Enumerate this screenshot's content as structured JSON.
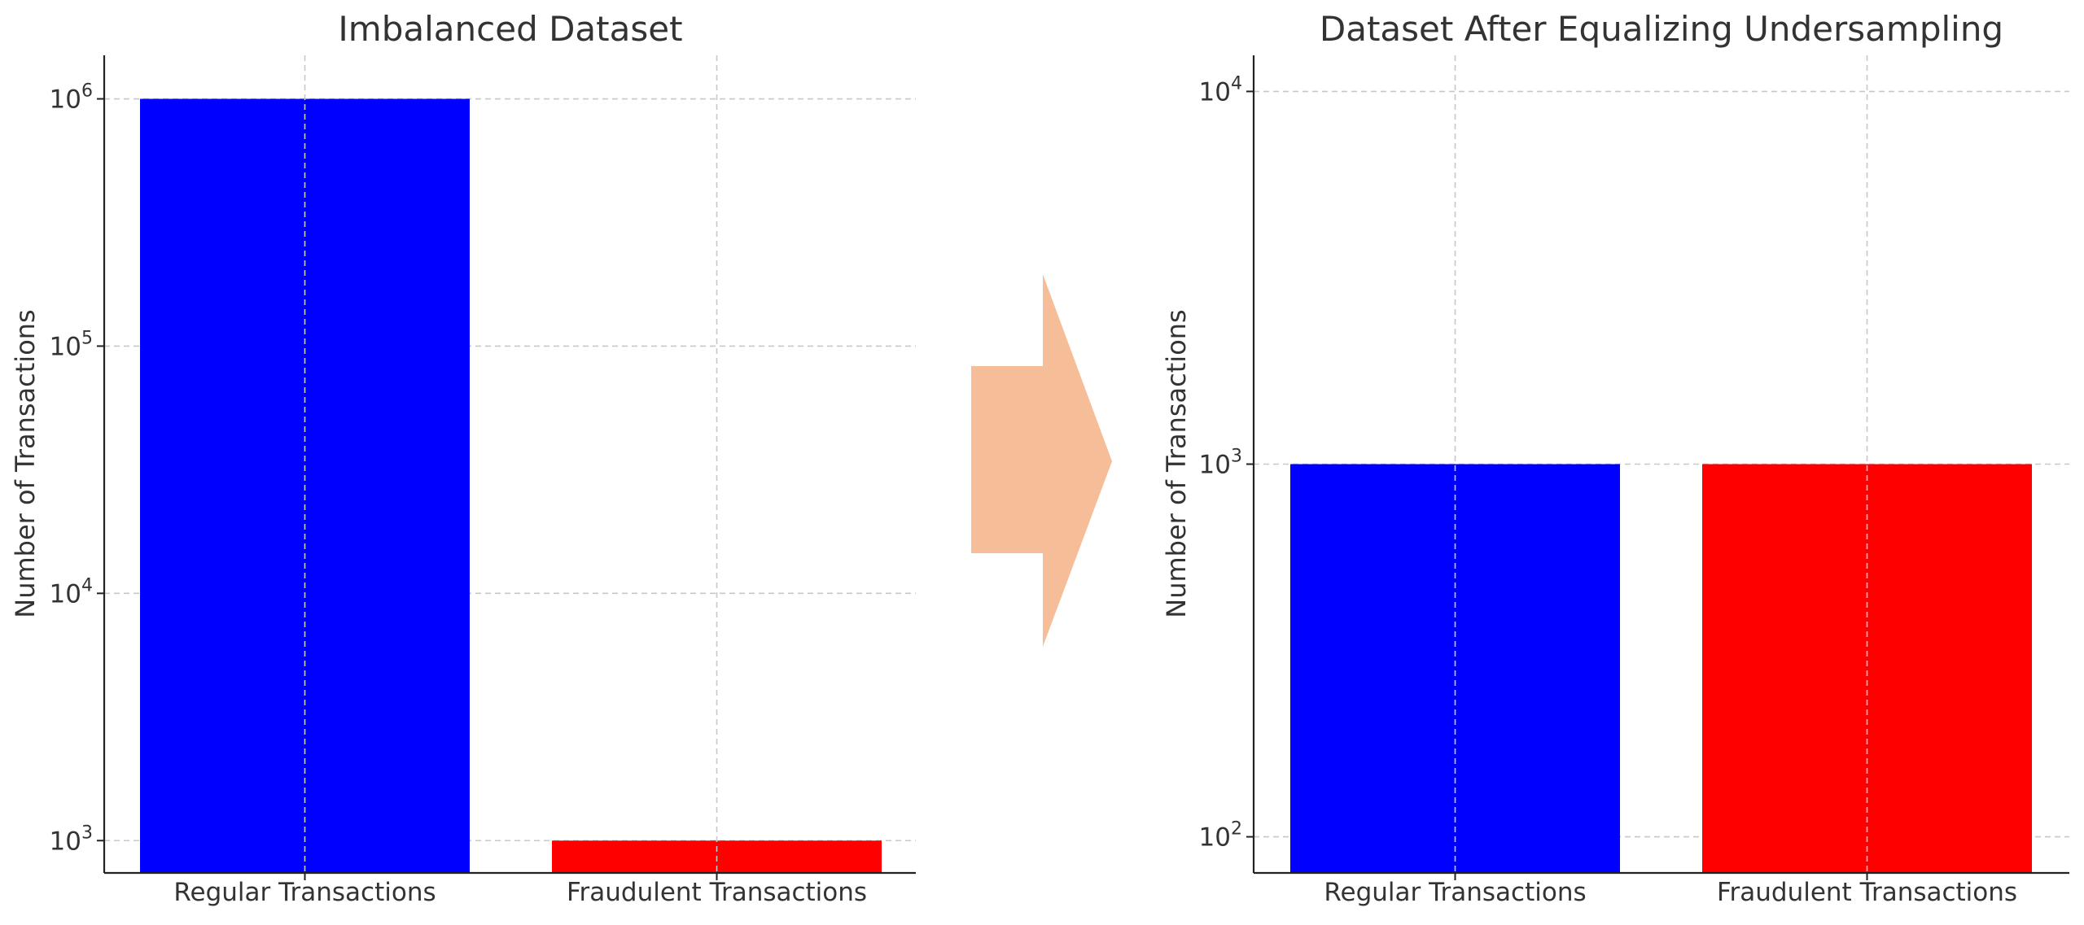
{
  "chart_data": [
    {
      "type": "bar",
      "title": "Imbalanced Dataset",
      "xlabel": "",
      "ylabel": "Number of Transactions",
      "yscale": "log",
      "ylim": [
        740,
        1500000
      ],
      "yticks": [
        {
          "value": 1000,
          "base": "10",
          "exp": "3"
        },
        {
          "value": 10000,
          "base": "10",
          "exp": "4"
        },
        {
          "value": 100000,
          "base": "10",
          "exp": "5"
        },
        {
          "value": 1000000,
          "base": "10",
          "exp": "6"
        }
      ],
      "categories": [
        "Regular Transactions",
        "Fraudulent Transactions"
      ],
      "values": [
        1000000,
        1000
      ],
      "colors": [
        "#0000ff",
        "#ff0000"
      ],
      "grid": true
    },
    {
      "type": "bar",
      "title": "Dataset After Equalizing Undersampling",
      "xlabel": "",
      "ylabel": "Number of Transactions",
      "yscale": "log",
      "ylim": [
        80,
        12500
      ],
      "yticks": [
        {
          "value": 100,
          "base": "10",
          "exp": "2"
        },
        {
          "value": 1000,
          "base": "10",
          "exp": "3"
        },
        {
          "value": 10000,
          "base": "10",
          "exp": "4"
        }
      ],
      "categories": [
        "Regular Transactions",
        "Fraudulent Transactions"
      ],
      "values": [
        1000,
        1000
      ],
      "colors": [
        "#0000ff",
        "#ff0000"
      ],
      "grid": true
    }
  ],
  "arrow": {
    "color": "#f5be98",
    "direction": "right"
  }
}
